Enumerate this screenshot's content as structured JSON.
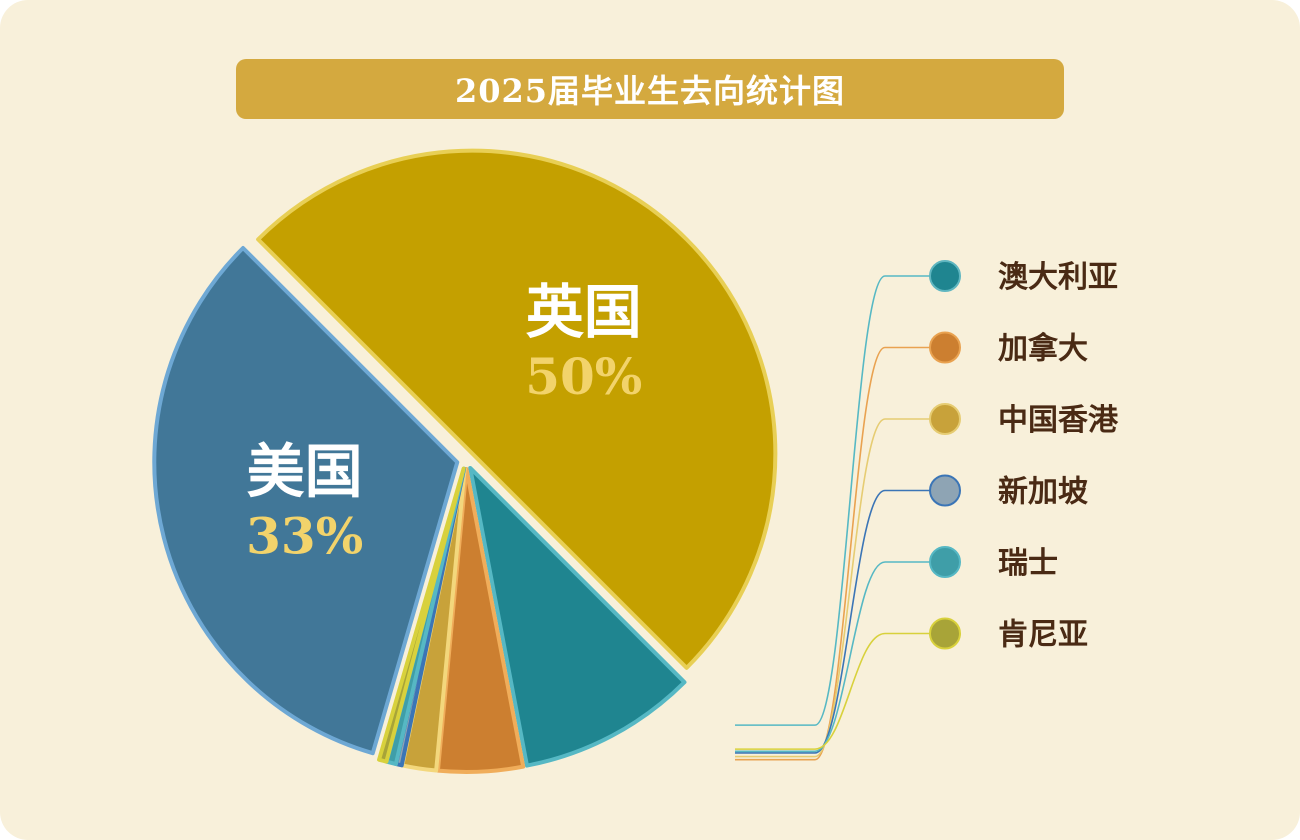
{
  "title": "2025届毕业生去向统计图",
  "chart_data": {
    "type": "pie",
    "title": "2025届毕业生去向统计图",
    "slices": [
      {
        "label": "英国",
        "value": 50,
        "value_label": "50%",
        "color": "#c4a000",
        "stroke": "#e8cf55",
        "inner_label": true
      },
      {
        "label": "澳大利亚",
        "value": 9.5,
        "color": "#1f8590",
        "stroke": "#56b8c4",
        "inner_label": false
      },
      {
        "label": "加拿大",
        "value": 4.5,
        "color": "#cc7f30",
        "stroke": "#f0ad5a",
        "inner_label": false
      },
      {
        "label": "中国香港",
        "value": 1.8,
        "color": "#c8a23a",
        "stroke": "#f3d77c",
        "inner_label": false
      },
      {
        "label": "新加坡",
        "value": 0.3,
        "color": "#8ea4b4",
        "stroke": "#3b75b6",
        "inner_label": false
      },
      {
        "label": "瑞士",
        "value": 0.5,
        "color": "#3f9ea8",
        "stroke": "#56b8c4",
        "inner_label": false
      },
      {
        "label": "肯尼亚",
        "value": 0.4,
        "color": "#a8a438",
        "stroke": "#d8d13c",
        "inner_label": false
      },
      {
        "label": "美国",
        "value": 33,
        "value_label": "33%",
        "color": "#417798",
        "stroke": "#6ea8d4",
        "inner_label": true
      }
    ],
    "legend": [
      {
        "label": "澳大利亚",
        "color": "#1f8590",
        "stroke": "#5fb6c0",
        "line": "#56b8c4"
      },
      {
        "label": "加拿大",
        "color": "#cc7f30",
        "stroke": "#e9a250",
        "line": "#e9a250"
      },
      {
        "label": "中国香港",
        "color": "#c8a23a",
        "stroke": "#e6cc72",
        "line": "#e6cc72"
      },
      {
        "label": "新加坡",
        "color": "#8ea4b4",
        "stroke": "#3b75b6",
        "line": "#3b75b6"
      },
      {
        "label": "瑞士",
        "color": "#3f9ea8",
        "stroke": "#56b8c4",
        "line": "#56b8c4"
      },
      {
        "label": "肯尼亚",
        "color": "#a8a438",
        "stroke": "#d8d13c",
        "line": "#d8d13c"
      }
    ],
    "legend_position": "right"
  }
}
